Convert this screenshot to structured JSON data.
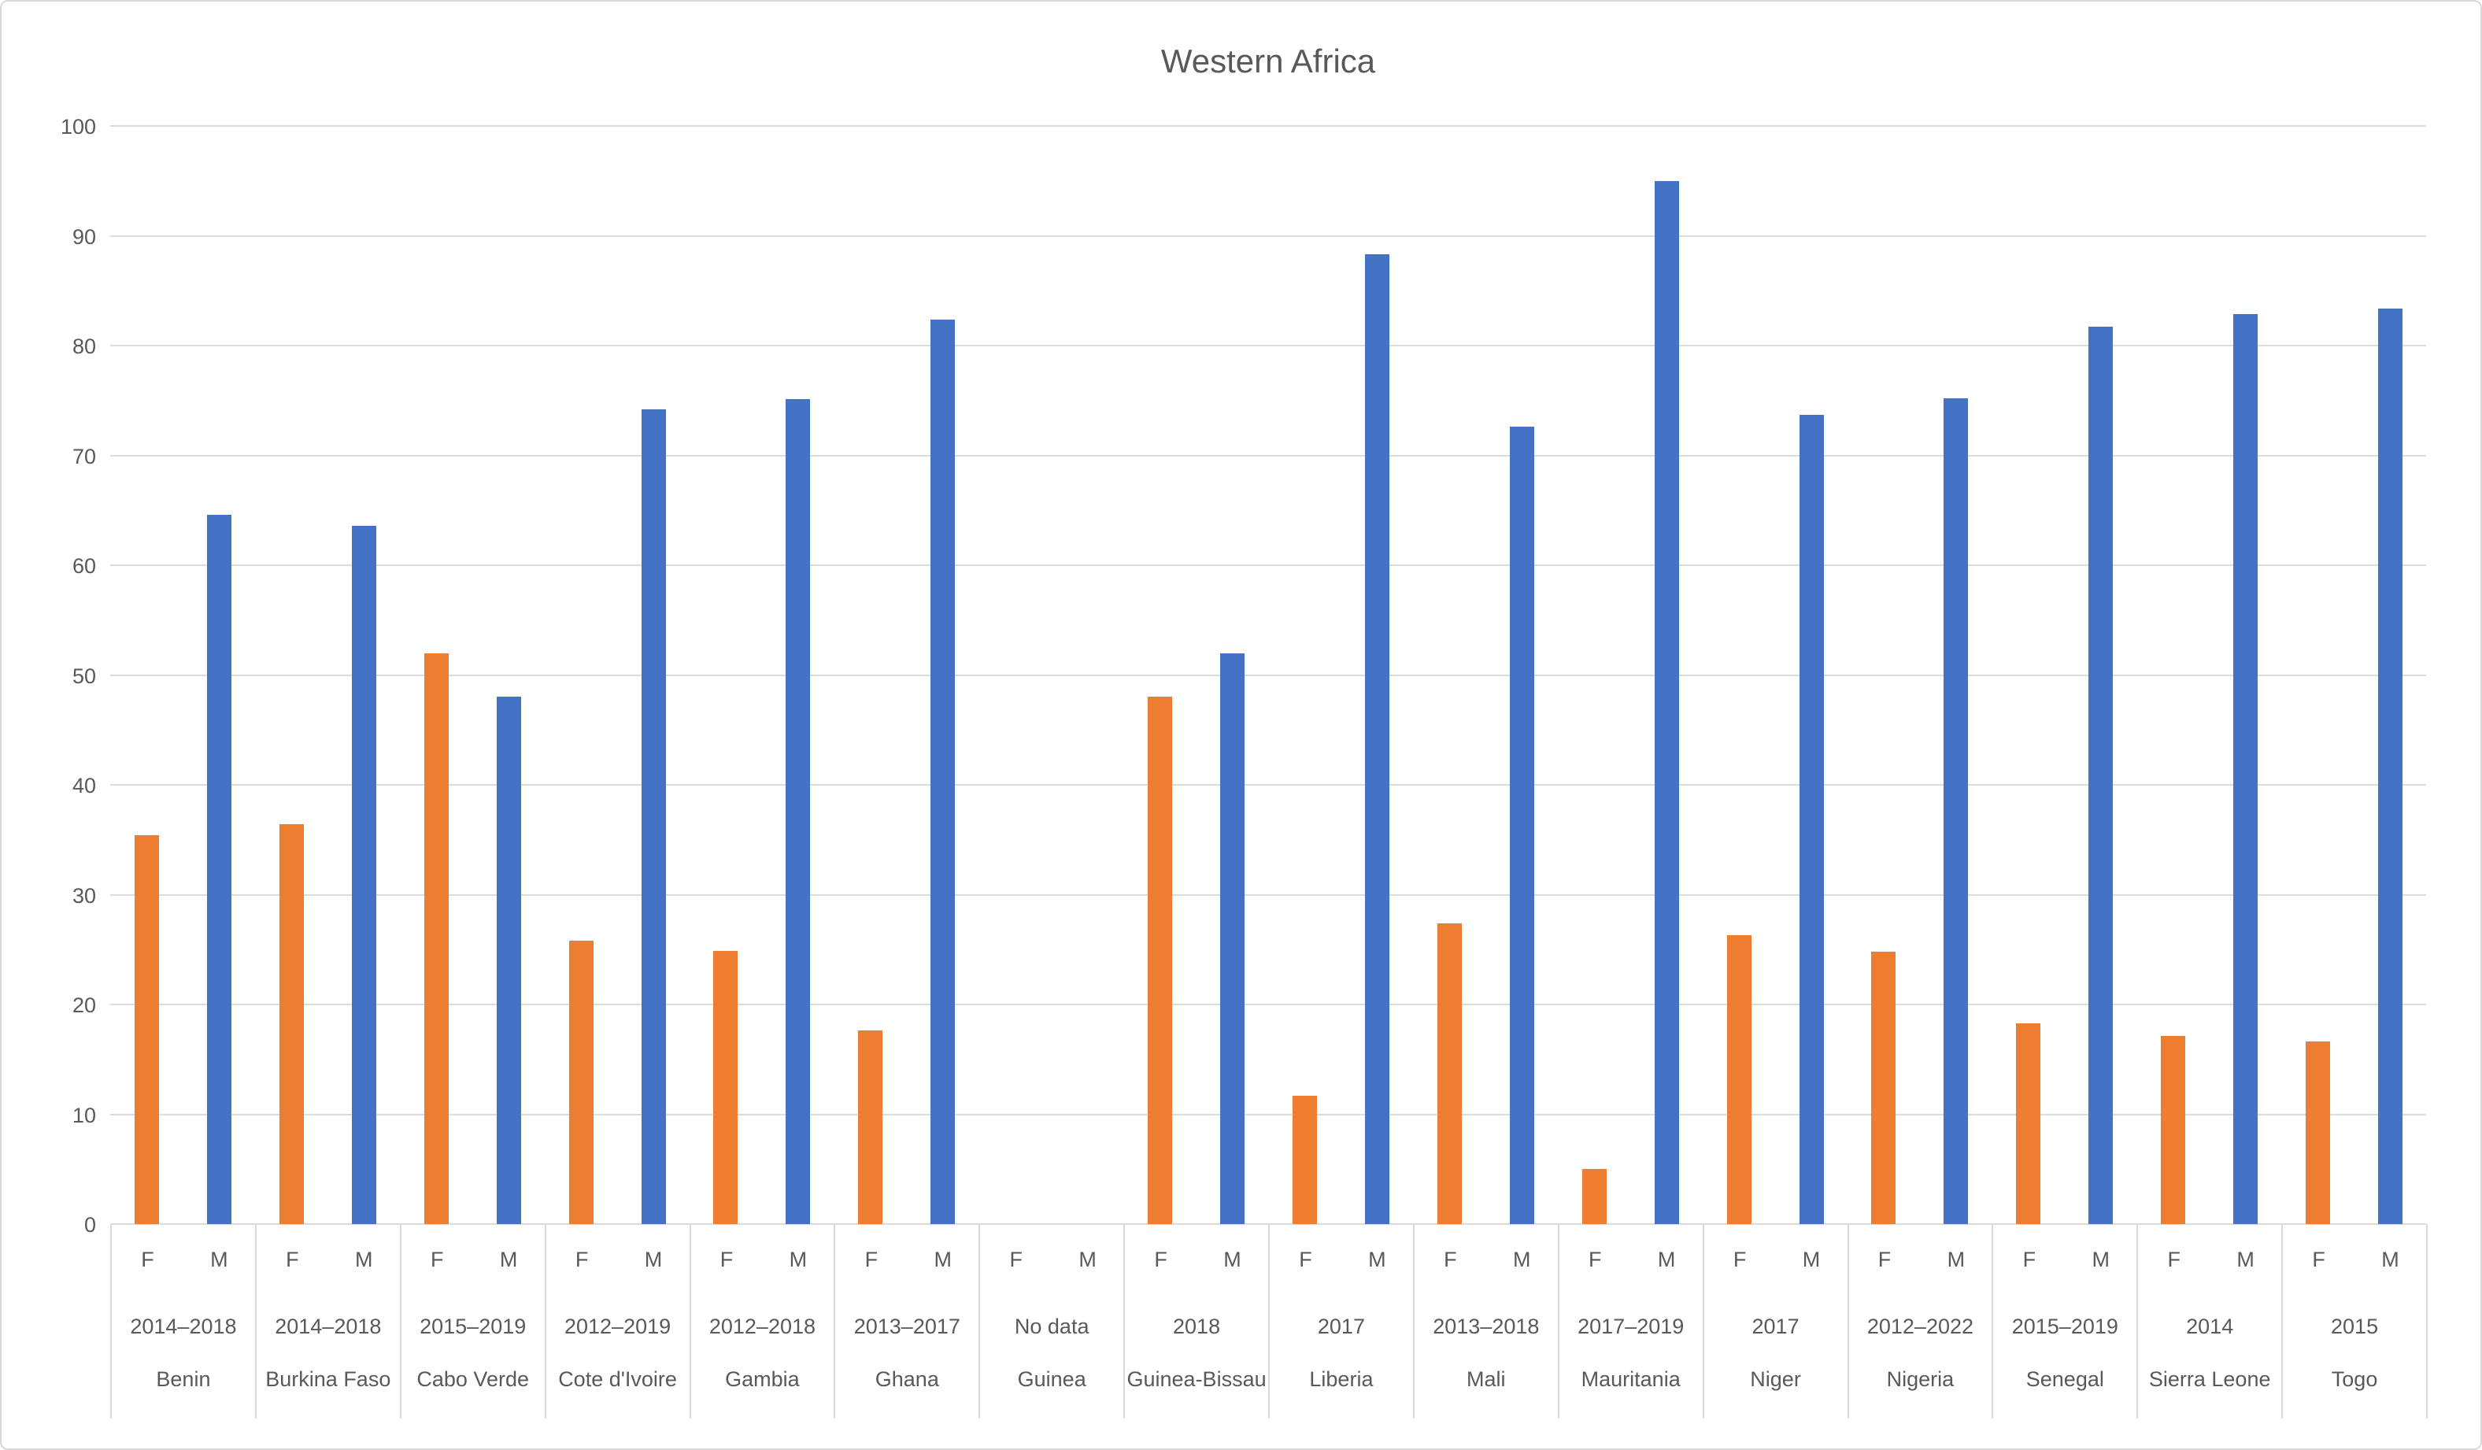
{
  "chart_data": {
    "type": "bar",
    "title": "Western Africa",
    "xlabel": "",
    "ylabel": "",
    "ylim": [
      0,
      100
    ],
    "yticks": [
      0,
      10,
      20,
      30,
      40,
      50,
      60,
      70,
      80,
      90,
      100
    ],
    "grid": true,
    "legend_position": "none",
    "bar_labels": [
      "F",
      "M"
    ],
    "colors": {
      "F": "#ED7D31",
      "M": "#4472C4"
    },
    "categories": [
      {
        "country": "Benin",
        "period": "2014–2018",
        "F": 35.4,
        "M": 64.6
      },
      {
        "country": "Burkina Faso",
        "period": "2014–2018",
        "F": 36.4,
        "M": 63.6
      },
      {
        "country": "Cabo Verde",
        "period": "2015–2019",
        "F": 52.0,
        "M": 48.0
      },
      {
        "country": "Cote d'Ivoire",
        "period": "2012–2019",
        "F": 25.8,
        "M": 74.2
      },
      {
        "country": "Gambia",
        "period": "2012–2018",
        "F": 24.9,
        "M": 75.1
      },
      {
        "country": "Ghana",
        "period": "2013–2017",
        "F": 17.6,
        "M": 82.4
      },
      {
        "country": "Guinea",
        "period": "No data",
        "F": null,
        "M": null
      },
      {
        "country": "Guinea-Bissau",
        "period": "2018",
        "F": 48.0,
        "M": 52.0
      },
      {
        "country": "Liberia",
        "period": "2017",
        "F": 11.7,
        "M": 88.3
      },
      {
        "country": "Mali",
        "period": "2013–2018",
        "F": 27.4,
        "M": 72.6
      },
      {
        "country": "Mauritania",
        "period": "2017–2019",
        "F": 5.0,
        "M": 95.0
      },
      {
        "country": "Niger",
        "period": "2017",
        "F": 26.3,
        "M": 73.7
      },
      {
        "country": "Nigeria",
        "period": "2012–2022",
        "F": 24.8,
        "M": 75.2
      },
      {
        "country": "Senegal",
        "period": "2015–2019",
        "F": 18.3,
        "M": 81.7
      },
      {
        "country": "Sierra Leone",
        "period": "2014",
        "F": 17.1,
        "M": 82.9
      },
      {
        "country": "Togo",
        "period": "2015",
        "F": 16.6,
        "M": 83.4
      }
    ]
  }
}
